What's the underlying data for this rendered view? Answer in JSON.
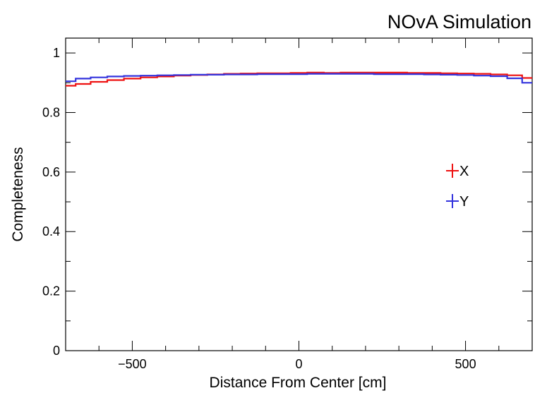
{
  "header": {
    "label": "NOvA Simulation",
    "color": "#a0a0a0"
  },
  "chart_data": {
    "type": "line",
    "title": "",
    "xlabel": "Distance From Center [cm]",
    "ylabel": "Completeness",
    "xlim": [
      -700,
      700
    ],
    "ylim": [
      0,
      1.05
    ],
    "x_ticks": [
      -500,
      0,
      500
    ],
    "x_tick_labels": [
      "−500",
      "0",
      "500"
    ],
    "y_ticks": [
      0,
      0.2,
      0.4,
      0.6,
      0.8,
      1
    ],
    "y_tick_labels": [
      "0",
      "0.2",
      "0.4",
      "0.6",
      "0.8",
      "1"
    ],
    "grid": false,
    "legend_position": "right-middle",
    "x": [
      -690,
      -650,
      -600,
      -550,
      -500,
      -450,
      -400,
      -350,
      -300,
      -250,
      -200,
      -150,
      -100,
      -50,
      0,
      50,
      100,
      150,
      200,
      250,
      300,
      350,
      400,
      450,
      500,
      550,
      600,
      650,
      690
    ],
    "series": [
      {
        "name": "X",
        "color": "#ee1111",
        "values": [
          0.89,
          0.896,
          0.903,
          0.909,
          0.914,
          0.918,
          0.921,
          0.924,
          0.926,
          0.928,
          0.93,
          0.931,
          0.932,
          0.932,
          0.933,
          0.934,
          0.933,
          0.934,
          0.934,
          0.934,
          0.934,
          0.933,
          0.933,
          0.932,
          0.931,
          0.93,
          0.928,
          0.925,
          0.916
        ]
      },
      {
        "name": "Y",
        "color": "#3333dd",
        "values": [
          0.905,
          0.914,
          0.918,
          0.921,
          0.923,
          0.924,
          0.925,
          0.926,
          0.927,
          0.927,
          0.928,
          0.928,
          0.929,
          0.929,
          0.929,
          0.93,
          0.93,
          0.93,
          0.93,
          0.929,
          0.929,
          0.929,
          0.928,
          0.927,
          0.926,
          0.924,
          0.922,
          0.915,
          0.9
        ]
      }
    ]
  }
}
